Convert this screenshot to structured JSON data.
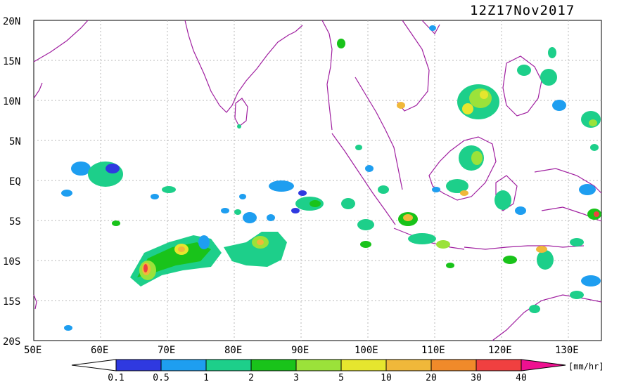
{
  "title": "12Z17Nov2017",
  "units": "[mm/hr]",
  "lat_labels": [
    "20N",
    "15N",
    "10N",
    "5N",
    "EQ",
    "5S",
    "10S",
    "15S",
    "20S"
  ],
  "lon_labels": [
    "50E",
    "60E",
    "70E",
    "80E",
    "90E",
    "100E",
    "110E",
    "120E",
    "130E"
  ],
  "colorbar": {
    "tick_labels": [
      "0.1",
      "0.5",
      "1",
      "2",
      "3",
      "5",
      "10",
      "20",
      "30",
      "40"
    ],
    "colors": [
      "#2f39e0",
      "#1e9ef0",
      "#1dcf8a",
      "#19c31a",
      "#9be23a",
      "#e6e62e",
      "#f0b83a",
      "#f08a2a",
      "#f04040",
      "#ee1090"
    ]
  },
  "map": {
    "lon_range": [
      50,
      135
    ],
    "lat_range": [
      -20,
      20
    ],
    "coastline_color": "#a020a0",
    "grid_color": "#b0b0b0"
  }
}
